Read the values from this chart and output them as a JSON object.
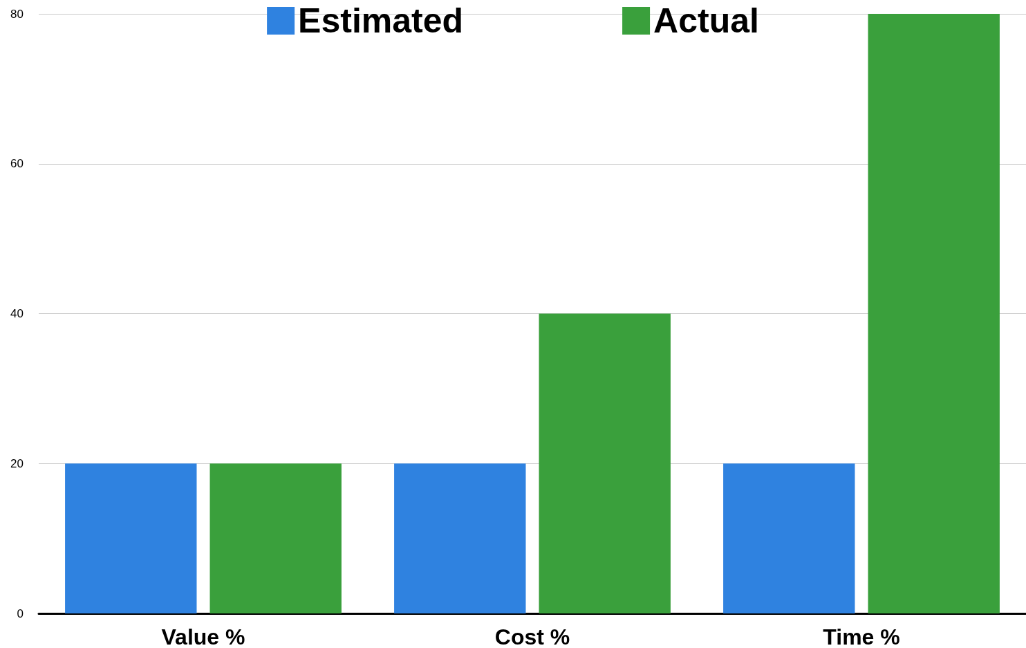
{
  "chart_data": {
    "type": "bar",
    "categories": [
      "Value %",
      "Cost %",
      "Time %"
    ],
    "series": [
      {
        "name": "Estimated",
        "color": "#2f82e0",
        "values": [
          20,
          20,
          20
        ]
      },
      {
        "name": "Actual",
        "color": "#3aa03c",
        "values": [
          20,
          40,
          80
        ]
      }
    ],
    "ylim": [
      0,
      80
    ],
    "yticks": [
      0,
      20,
      40,
      60,
      80
    ],
    "grid": "y",
    "legend": "top"
  }
}
